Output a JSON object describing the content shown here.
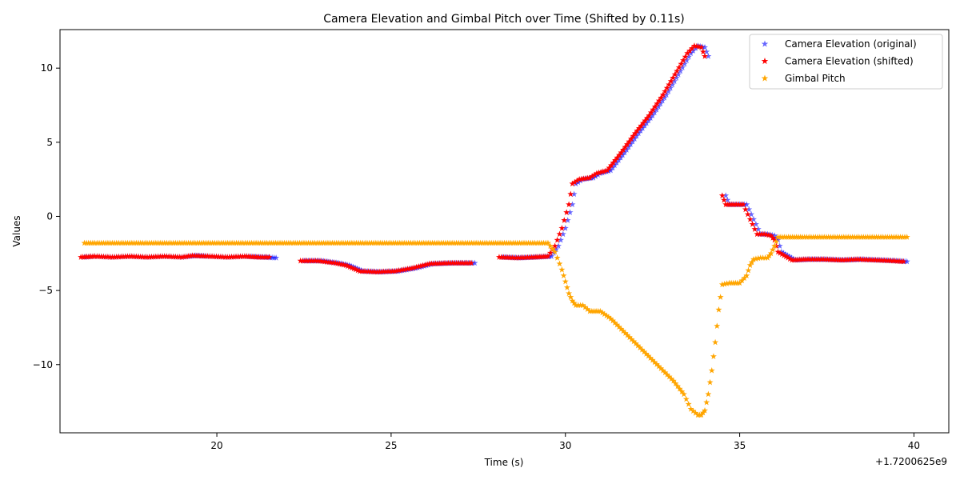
{
  "chart_data": {
    "type": "scatter",
    "title": "Camera Elevation and Gimbal Pitch over Time (Shifted by 0.11s)",
    "xlabel": "Time (s)",
    "ylabel": "Values",
    "x_offset_label": "+1.7200625e9",
    "xlim": [
      15.5,
      41.0
    ],
    "ylim": [
      -14.6,
      12.6
    ],
    "x_ticks": [
      20,
      25,
      30,
      35,
      40
    ],
    "x_tick_labels": [
      "20",
      "25",
      "30",
      "35",
      "40"
    ],
    "y_ticks": [
      10,
      5,
      0,
      -5,
      -10
    ],
    "y_tick_labels": [
      "10",
      "5",
      "0",
      "−5",
      "−10"
    ],
    "grid": false,
    "legend_placement": "top-right",
    "marker": "star",
    "series": [
      {
        "name": "Camera Elevation (original)",
        "color": "#0000ff",
        "opacity": 0.6,
        "x": [
          16.2,
          16.5,
          17.0,
          17.5,
          18.0,
          18.5,
          19.0,
          19.4,
          19.8,
          20.3,
          20.8,
          21.3,
          21.7,
          22.5,
          23.0,
          23.5,
          23.8,
          24.2,
          24.7,
          25.2,
          25.7,
          26.2,
          26.8,
          27.4,
          28.2,
          28.7,
          29.2,
          29.6,
          29.8,
          30.0,
          30.2,
          30.3,
          30.5,
          30.8,
          31.0,
          31.3,
          31.7,
          32.1,
          32.5,
          32.9,
          33.3,
          33.6,
          33.8,
          34.0,
          34.1,
          34.6,
          34.7,
          35.0,
          35.2,
          35.4,
          35.6,
          35.8,
          36.0,
          36.1,
          36.2,
          36.6,
          37.0,
          37.5,
          38.0,
          38.5,
          39.0,
          39.5,
          39.8
        ],
        "y": [
          -2.75,
          -2.7,
          -2.75,
          -2.7,
          -2.75,
          -2.7,
          -2.75,
          -2.65,
          -2.7,
          -2.75,
          -2.7,
          -2.75,
          -2.8,
          -3.0,
          -3.0,
          -3.15,
          -3.3,
          -3.7,
          -3.75,
          -3.7,
          -3.5,
          -3.2,
          -3.15,
          -3.15,
          -2.75,
          -2.8,
          -2.75,
          -2.7,
          -2.0,
          -0.8,
          0.8,
          2.2,
          2.5,
          2.6,
          2.9,
          3.1,
          4.3,
          5.6,
          6.8,
          8.2,
          9.8,
          11.0,
          11.5,
          11.4,
          10.8,
          1.4,
          0.8,
          0.8,
          0.8,
          -0.2,
          -1.2,
          -1.2,
          -1.3,
          -1.6,
          -2.4,
          -2.95,
          -2.9,
          -2.9,
          -2.95,
          -2.9,
          -2.95,
          -3.0,
          -3.05
        ]
      },
      {
        "name": "Camera Elevation (shifted)",
        "color": "#ff0000",
        "opacity": 1,
        "x": [
          16.1,
          16.5,
          17.0,
          17.5,
          18.0,
          18.5,
          19.0,
          19.3,
          19.8,
          20.3,
          20.8,
          21.2,
          21.5,
          22.4,
          22.9,
          23.4,
          23.7,
          24.1,
          24.6,
          25.1,
          25.6,
          26.1,
          26.7,
          27.3,
          28.1,
          28.6,
          29.1,
          29.5,
          29.7,
          29.9,
          30.1,
          30.2,
          30.4,
          30.7,
          30.9,
          31.2,
          31.6,
          32.0,
          32.4,
          32.8,
          33.2,
          33.5,
          33.7,
          33.9,
          34.0,
          34.5,
          34.6,
          34.9,
          35.1,
          35.3,
          35.5,
          35.7,
          35.9,
          36.0,
          36.1,
          36.5,
          36.9,
          37.4,
          37.9,
          38.4,
          38.9,
          39.4,
          39.7
        ],
        "y": [
          -2.75,
          -2.7,
          -2.75,
          -2.7,
          -2.75,
          -2.7,
          -2.75,
          -2.65,
          -2.7,
          -2.75,
          -2.7,
          -2.75,
          -2.75,
          -3.0,
          -3.0,
          -3.15,
          -3.3,
          -3.7,
          -3.75,
          -3.7,
          -3.5,
          -3.2,
          -3.15,
          -3.15,
          -2.75,
          -2.8,
          -2.75,
          -2.7,
          -2.0,
          -0.8,
          0.8,
          2.2,
          2.5,
          2.6,
          2.9,
          3.1,
          4.3,
          5.6,
          6.8,
          8.2,
          9.8,
          11.0,
          11.5,
          11.4,
          10.8,
          1.4,
          0.8,
          0.8,
          0.8,
          -0.2,
          -1.2,
          -1.2,
          -1.3,
          -1.6,
          -2.4,
          -2.95,
          -2.9,
          -2.9,
          -2.95,
          -2.9,
          -2.95,
          -3.0,
          -3.05
        ]
      },
      {
        "name": "Gimbal Pitch",
        "color": "#ffa500",
        "opacity": 1,
        "x": [
          16.2,
          16.5,
          17.0,
          17.5,
          18.0,
          18.5,
          19.0,
          19.5,
          20.0,
          20.5,
          21.0,
          21.5,
          22.0,
          22.5,
          23.0,
          23.5,
          24.0,
          24.5,
          25.0,
          25.5,
          26.0,
          26.5,
          27.0,
          27.5,
          28.0,
          28.5,
          29.0,
          29.5,
          29.7,
          29.9,
          30.0,
          30.1,
          30.2,
          30.3,
          30.5,
          30.7,
          31.0,
          31.3,
          31.6,
          31.9,
          32.2,
          32.5,
          32.8,
          33.1,
          33.4,
          33.6,
          33.8,
          33.9,
          34.0,
          34.1,
          34.2,
          34.3,
          34.4,
          34.5,
          34.7,
          35.0,
          35.2,
          35.3,
          35.4,
          35.6,
          35.8,
          35.9,
          36.0,
          36.1,
          36.4,
          36.8,
          37.3,
          37.8,
          38.3,
          38.8,
          39.3,
          39.8
        ],
        "y": [
          -1.8,
          -1.8,
          -1.8,
          -1.8,
          -1.8,
          -1.8,
          -1.8,
          -1.8,
          -1.8,
          -1.8,
          -1.8,
          -1.8,
          -1.8,
          -1.8,
          -1.8,
          -1.8,
          -1.8,
          -1.8,
          -1.8,
          -1.8,
          -1.8,
          -1.8,
          -1.8,
          -1.8,
          -1.8,
          -1.8,
          -1.8,
          -1.8,
          -2.4,
          -3.6,
          -4.4,
          -5.2,
          -5.7,
          -6.0,
          -6.0,
          -6.4,
          -6.4,
          -6.9,
          -7.6,
          -8.3,
          -9.0,
          -9.7,
          -10.4,
          -11.1,
          -12.0,
          -13.0,
          -13.4,
          -13.4,
          -13.1,
          -12.0,
          -10.4,
          -8.5,
          -6.3,
          -4.6,
          -4.5,
          -4.5,
          -4.0,
          -3.3,
          -2.9,
          -2.8,
          -2.8,
          -2.5,
          -2.0,
          -1.4,
          -1.4,
          -1.4,
          -1.4,
          -1.4,
          -1.4,
          -1.4,
          -1.4,
          -1.4
        ]
      }
    ]
  }
}
